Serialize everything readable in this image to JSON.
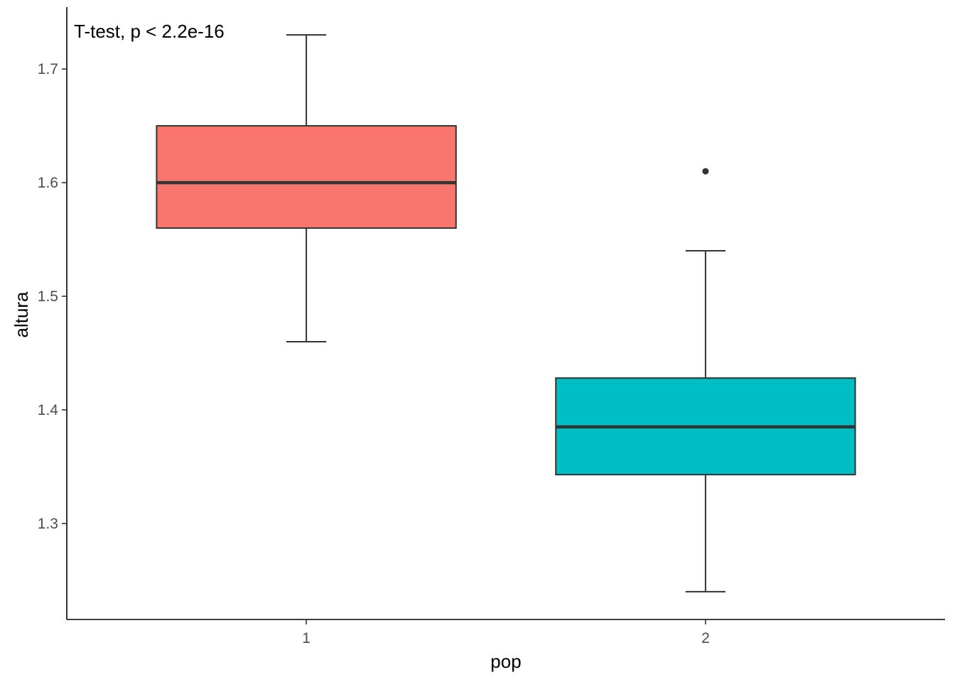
{
  "chart_data": {
    "type": "boxplot",
    "title": "",
    "xlabel": "pop",
    "ylabel": "altura",
    "annotation": "T-test, p < 2.2e-16",
    "categories": [
      "1",
      "2"
    ],
    "ylim": [
      1.2155,
      1.7545
    ],
    "yticks": [
      1.3,
      1.4,
      1.5,
      1.6,
      1.7
    ],
    "ytick_labels": [
      "1.3",
      "1.4",
      "1.5",
      "1.6",
      "1.7"
    ],
    "grid": false,
    "legend": "none",
    "boxes": [
      {
        "category": "1",
        "whisker_low": 1.46,
        "q1": 1.56,
        "median": 1.6,
        "q3": 1.65,
        "whisker_high": 1.73,
        "outliers": [],
        "color": "#F8766D"
      },
      {
        "category": "2",
        "whisker_low": 1.24,
        "q1": 1.343,
        "median": 1.385,
        "q3": 1.428,
        "whisker_high": 1.54,
        "outliers": [
          1.61
        ],
        "color": "#00BFC4"
      }
    ]
  }
}
